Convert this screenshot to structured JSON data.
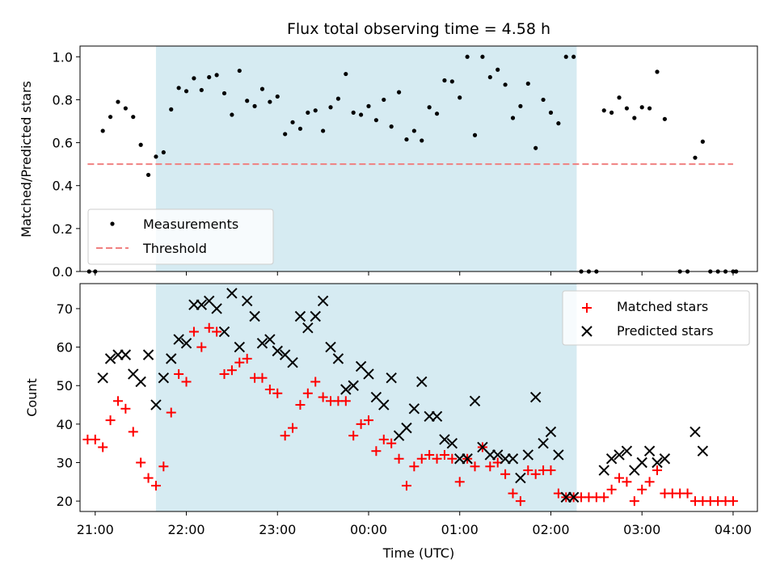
{
  "chart_data": [
    {
      "type": "scatter",
      "title": "Flux total observing time = 4.58 h",
      "xlabel": "",
      "ylabel": "Matched/Predicted stars",
      "ylim": [
        0,
        1.05
      ],
      "xlim": [
        "20:50",
        "04:16"
      ],
      "xticks": [
        "21:00",
        "22:00",
        "23:00",
        "00:00",
        "01:00",
        "02:00",
        "03:00",
        "04:00"
      ],
      "yticks": [
        "0.0",
        "0.2",
        "0.4",
        "0.6",
        "0.8",
        "1.0"
      ],
      "shaded_region": {
        "x": [
          "21:40",
          "02:17"
        ],
        "color": "#add8e6"
      },
      "legend": {
        "position": "lower-left",
        "entries": [
          "Measurements",
          "Threshold"
        ]
      },
      "series": [
        {
          "name": "Measurements",
          "marker": "dot",
          "color": "#000000",
          "points": [
            [
              "20:56",
              0.0
            ],
            [
              "21:00",
              0.0
            ],
            [
              "21:05",
              0.655
            ],
            [
              "21:10",
              0.72
            ],
            [
              "21:15",
              0.79
            ],
            [
              "21:20",
              0.76
            ],
            [
              "21:25",
              0.72
            ],
            [
              "21:30",
              0.59
            ],
            [
              "21:35",
              0.45
            ],
            [
              "21:40",
              0.535
            ],
            [
              "21:45",
              0.555
            ],
            [
              "21:50",
              0.755
            ],
            [
              "21:55",
              0.855
            ],
            [
              "22:00",
              0.84
            ],
            [
              "22:05",
              0.9
            ],
            [
              "22:10",
              0.845
            ],
            [
              "22:15",
              0.905
            ],
            [
              "22:20",
              0.915
            ],
            [
              "22:25",
              0.83
            ],
            [
              "22:30",
              0.73
            ],
            [
              "22:35",
              0.935
            ],
            [
              "22:40",
              0.795
            ],
            [
              "22:45",
              0.77
            ],
            [
              "22:50",
              0.85
            ],
            [
              "22:55",
              0.79
            ],
            [
              "23:00",
              0.815
            ],
            [
              "23:05",
              0.64
            ],
            [
              "23:10",
              0.695
            ],
            [
              "23:15",
              0.665
            ],
            [
              "23:20",
              0.74
            ],
            [
              "23:25",
              0.75
            ],
            [
              "23:30",
              0.655
            ],
            [
              "23:35",
              0.765
            ],
            [
              "23:40",
              0.805
            ],
            [
              "23:45",
              0.92
            ],
            [
              "23:50",
              0.74
            ],
            [
              "23:55",
              0.73
            ],
            [
              "00:00",
              0.77
            ],
            [
              "00:05",
              0.705
            ],
            [
              "00:10",
              0.8
            ],
            [
              "00:15",
              0.675
            ],
            [
              "00:20",
              0.835
            ],
            [
              "00:25",
              0.615
            ],
            [
              "00:30",
              0.655
            ],
            [
              "00:35",
              0.61
            ],
            [
              "00:40",
              0.765
            ],
            [
              "00:45",
              0.735
            ],
            [
              "00:50",
              0.89
            ],
            [
              "00:55",
              0.885
            ],
            [
              "01:00",
              0.81
            ],
            [
              "01:05",
              1.0
            ],
            [
              "01:10",
              0.635
            ],
            [
              "01:15",
              1.0
            ],
            [
              "01:20",
              0.905
            ],
            [
              "01:25",
              0.94
            ],
            [
              "01:30",
              0.87
            ],
            [
              "01:35",
              0.715
            ],
            [
              "01:40",
              0.77
            ],
            [
              "01:45",
              0.875
            ],
            [
              "01:50",
              0.575
            ],
            [
              "01:55",
              0.8
            ],
            [
              "02:00",
              0.74
            ],
            [
              "02:05",
              0.69
            ],
            [
              "02:10",
              1.0
            ],
            [
              "02:15",
              1.0
            ],
            [
              "02:20",
              0.0
            ],
            [
              "02:25",
              0.0
            ],
            [
              "02:30",
              0.0
            ],
            [
              "02:35",
              0.75
            ],
            [
              "02:40",
              0.74
            ],
            [
              "02:45",
              0.81
            ],
            [
              "02:50",
              0.76
            ],
            [
              "02:55",
              0.715
            ],
            [
              "03:00",
              0.765
            ],
            [
              "03:05",
              0.76
            ],
            [
              "03:10",
              0.93
            ],
            [
              "03:15",
              0.71
            ],
            [
              "03:25",
              0.0
            ],
            [
              "03:30",
              0.0
            ],
            [
              "03:35",
              0.53
            ],
            [
              "03:40",
              0.605
            ],
            [
              "03:45",
              0.0
            ],
            [
              "03:50",
              0.0
            ],
            [
              "03:55",
              0.0
            ],
            [
              "04:00",
              0.0
            ],
            [
              "04:02",
              0.0
            ]
          ]
        },
        {
          "name": "Threshold",
          "style": "dashed",
          "color": "#f08080",
          "points": [
            [
              "20:55",
              0.5
            ],
            [
              "04:00",
              0.5
            ]
          ]
        }
      ]
    },
    {
      "type": "scatter",
      "title": "",
      "xlabel": "Time (UTC)",
      "ylabel": "Count",
      "ylim": [
        17.3,
        76.5
      ],
      "xlim": [
        "20:50",
        "04:16"
      ],
      "xticks": [
        "21:00",
        "22:00",
        "23:00",
        "00:00",
        "01:00",
        "02:00",
        "03:00",
        "04:00"
      ],
      "yticks": [
        "20",
        "30",
        "40",
        "50",
        "60",
        "70"
      ],
      "shaded_region": {
        "x": [
          "21:40",
          "02:17"
        ],
        "color": "#add8e6"
      },
      "legend": {
        "position": "top-right",
        "entries": [
          "Matched stars",
          "Predicted stars"
        ]
      },
      "series": [
        {
          "name": "Matched stars",
          "marker": "plus",
          "color": "#ff0000",
          "points": [
            [
              "20:55",
              36
            ],
            [
              "21:00",
              36
            ],
            [
              "21:05",
              34
            ],
            [
              "21:10",
              41
            ],
            [
              "21:15",
              46
            ],
            [
              "21:20",
              44
            ],
            [
              "21:25",
              38
            ],
            [
              "21:30",
              30
            ],
            [
              "21:35",
              26
            ],
            [
              "21:40",
              24
            ],
            [
              "21:45",
              29
            ],
            [
              "21:50",
              43
            ],
            [
              "21:55",
              53
            ],
            [
              "22:00",
              51
            ],
            [
              "22:05",
              64
            ],
            [
              "22:10",
              60
            ],
            [
              "22:15",
              65
            ],
            [
              "22:20",
              64
            ],
            [
              "22:25",
              53
            ],
            [
              "22:30",
              54
            ],
            [
              "22:35",
              56
            ],
            [
              "22:40",
              57
            ],
            [
              "22:45",
              52
            ],
            [
              "22:50",
              52
            ],
            [
              "22:55",
              49
            ],
            [
              "23:00",
              48
            ],
            [
              "23:05",
              37
            ],
            [
              "23:10",
              39
            ],
            [
              "23:15",
              45
            ],
            [
              "23:20",
              48
            ],
            [
              "23:25",
              51
            ],
            [
              "23:30",
              47
            ],
            [
              "23:35",
              46
            ],
            [
              "23:40",
              46
            ],
            [
              "23:45",
              46
            ],
            [
              "23:50",
              37
            ],
            [
              "23:55",
              40
            ],
            [
              "00:00",
              41
            ],
            [
              "00:05",
              33
            ],
            [
              "00:10",
              36
            ],
            [
              "00:15",
              35
            ],
            [
              "00:20",
              31
            ],
            [
              "00:25",
              24
            ],
            [
              "00:30",
              29
            ],
            [
              "00:35",
              31
            ],
            [
              "00:40",
              32
            ],
            [
              "00:45",
              31
            ],
            [
              "00:50",
              32
            ],
            [
              "00:55",
              31
            ],
            [
              "01:00",
              25
            ],
            [
              "01:05",
              31
            ],
            [
              "01:10",
              29
            ],
            [
              "01:15",
              34
            ],
            [
              "01:20",
              29
            ],
            [
              "01:25",
              30
            ],
            [
              "01:30",
              27
            ],
            [
              "01:35",
              22
            ],
            [
              "01:40",
              20
            ],
            [
              "01:45",
              28
            ],
            [
              "01:50",
              27
            ],
            [
              "01:55",
              28
            ],
            [
              "02:00",
              28
            ],
            [
              "02:05",
              22
            ],
            [
              "02:10",
              21
            ],
            [
              "02:15",
              21
            ],
            [
              "02:20",
              21
            ],
            [
              "02:25",
              21
            ],
            [
              "02:30",
              21
            ],
            [
              "02:35",
              21
            ],
            [
              "02:40",
              23
            ],
            [
              "02:45",
              26
            ],
            [
              "02:50",
              25
            ],
            [
              "02:55",
              20
            ],
            [
              "03:00",
              23
            ],
            [
              "03:05",
              25
            ],
            [
              "03:10",
              28
            ],
            [
              "03:15",
              22
            ],
            [
              "03:20",
              22
            ],
            [
              "03:25",
              22
            ],
            [
              "03:30",
              22
            ],
            [
              "03:35",
              20
            ],
            [
              "03:40",
              20
            ],
            [
              "03:45",
              20
            ],
            [
              "03:50",
              20
            ],
            [
              "03:55",
              20
            ],
            [
              "04:00",
              20
            ]
          ]
        },
        {
          "name": "Predicted stars",
          "marker": "x",
          "color": "#000000",
          "points": [
            [
              "21:05",
              52
            ],
            [
              "21:10",
              57
            ],
            [
              "21:15",
              58
            ],
            [
              "21:20",
              58
            ],
            [
              "21:25",
              53
            ],
            [
              "21:30",
              51
            ],
            [
              "21:35",
              58
            ],
            [
              "21:40",
              45
            ],
            [
              "21:45",
              52
            ],
            [
              "21:50",
              57
            ],
            [
              "21:55",
              62
            ],
            [
              "22:00",
              61
            ],
            [
              "22:05",
              71
            ],
            [
              "22:10",
              71
            ],
            [
              "22:15",
              72
            ],
            [
              "22:20",
              70
            ],
            [
              "22:25",
              64
            ],
            [
              "22:30",
              74
            ],
            [
              "22:35",
              60
            ],
            [
              "22:40",
              72
            ],
            [
              "22:45",
              68
            ],
            [
              "22:50",
              61
            ],
            [
              "22:55",
              62
            ],
            [
              "23:00",
              59
            ],
            [
              "23:05",
              58
            ],
            [
              "23:10",
              56
            ],
            [
              "23:15",
              68
            ],
            [
              "23:20",
              65
            ],
            [
              "23:25",
              68
            ],
            [
              "23:30",
              72
            ],
            [
              "23:35",
              60
            ],
            [
              "23:40",
              57
            ],
            [
              "23:45",
              49
            ],
            [
              "23:50",
              50
            ],
            [
              "23:55",
              55
            ],
            [
              "00:00",
              53
            ],
            [
              "00:05",
              47
            ],
            [
              "00:10",
              45
            ],
            [
              "00:15",
              52
            ],
            [
              "00:20",
              37
            ],
            [
              "00:25",
              39
            ],
            [
              "00:30",
              44
            ],
            [
              "00:35",
              51
            ],
            [
              "00:40",
              42
            ],
            [
              "00:45",
              42
            ],
            [
              "00:50",
              36
            ],
            [
              "00:55",
              35
            ],
            [
              "01:00",
              31
            ],
            [
              "01:05",
              31
            ],
            [
              "01:10",
              46
            ],
            [
              "01:15",
              34
            ],
            [
              "01:20",
              32
            ],
            [
              "01:25",
              32
            ],
            [
              "01:30",
              31
            ],
            [
              "01:35",
              31
            ],
            [
              "01:40",
              26
            ],
            [
              "01:45",
              32
            ],
            [
              "01:50",
              47
            ],
            [
              "01:55",
              35
            ],
            [
              "02:00",
              38
            ],
            [
              "02:05",
              32
            ],
            [
              "02:10",
              21
            ],
            [
              "02:15",
              21
            ],
            [
              "02:35",
              28
            ],
            [
              "02:40",
              31
            ],
            [
              "02:45",
              32
            ],
            [
              "02:50",
              33
            ],
            [
              "02:55",
              28
            ],
            [
              "03:00",
              30
            ],
            [
              "03:05",
              33
            ],
            [
              "03:10",
              30
            ],
            [
              "03:15",
              31
            ],
            [
              "03:35",
              38
            ],
            [
              "03:40",
              33
            ]
          ]
        }
      ]
    }
  ]
}
